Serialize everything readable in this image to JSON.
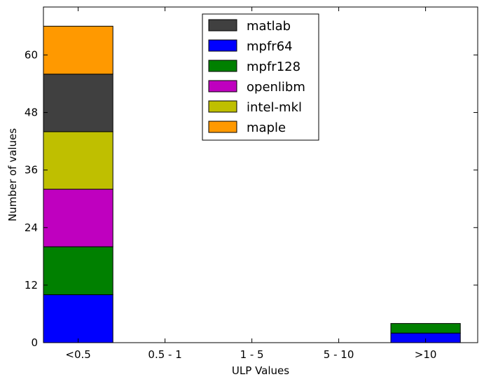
{
  "chart_data": {
    "type": "bar",
    "stacked": true,
    "categories": [
      "<0.5",
      "0.5 - 1",
      "1 - 5",
      "5 - 10",
      ">10"
    ],
    "series": [
      {
        "name": "mpfr64",
        "color": "#0000ff",
        "values": [
          10,
          0,
          0,
          0,
          2
        ]
      },
      {
        "name": "mpfr128",
        "color": "#008000",
        "values": [
          10,
          0,
          0,
          0,
          2
        ]
      },
      {
        "name": "openlibm",
        "color": "#bf00bf",
        "values": [
          12,
          0,
          0,
          0,
          0
        ]
      },
      {
        "name": "intel-mkl",
        "color": "#bfbf00",
        "values": [
          12,
          0,
          0,
          0,
          0
        ]
      },
      {
        "name": "matlab",
        "color": "#404040",
        "values": [
          12,
          0,
          0,
          0,
          0
        ]
      },
      {
        "name": "maple",
        "color": "#ff9900",
        "values": [
          10,
          0,
          0,
          0,
          0
        ]
      }
    ],
    "legend_order": [
      "matlab",
      "mpfr64",
      "mpfr128",
      "openlibm",
      "intel-mkl",
      "maple"
    ],
    "legend_position": "top-center",
    "xlabel": "ULP Values",
    "ylabel": "Number of values",
    "ylim": [
      0,
      70
    ],
    "yticks": [
      0,
      12,
      24,
      36,
      48,
      60
    ],
    "grid": false
  }
}
